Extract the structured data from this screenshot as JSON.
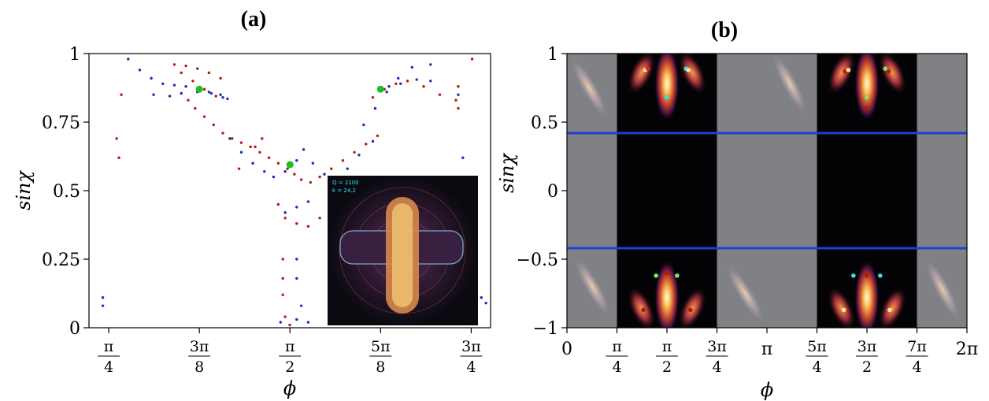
{
  "figure": {
    "label_a": "(a)",
    "label_b": "(b)"
  },
  "chart_data": [
    {
      "type": "scatter",
      "panel": "(a)",
      "xlabel": "ϕ",
      "ylabel": "sinχ",
      "xlim": [
        0.7,
        2.44
      ],
      "ylim": [
        0,
        1
      ],
      "xticks": [
        {
          "value": 0.7854,
          "num": "π",
          "den": "4"
        },
        {
          "value": 1.1781,
          "num": "3π",
          "den": "8"
        },
        {
          "value": 1.5708,
          "num": "π",
          "den": "2"
        },
        {
          "value": 1.9635,
          "num": "5π",
          "den": "8"
        },
        {
          "value": 2.3562,
          "num": "3π",
          "den": "4"
        }
      ],
      "yticks": [
        {
          "value": 0,
          "label": "0"
        },
        {
          "value": 0.25,
          "label": "0.25"
        },
        {
          "value": 0.5,
          "label": "0.5"
        },
        {
          "value": 0.75,
          "label": "0.75"
        },
        {
          "value": 1,
          "label": "1"
        }
      ],
      "colors": {
        "red": "#b41b0e",
        "blue": "#1f2bb8",
        "marker": "#22bb22"
      },
      "series": [
        {
          "color": "red",
          "points": [
            [
              1.07,
              0.96
            ],
            [
              1.12,
              0.955
            ],
            [
              1.17,
              0.945
            ],
            [
              1.22,
              0.93
            ],
            [
              1.27,
              0.91
            ],
            [
              1.1,
              0.93
            ],
            [
              1.15,
              0.9
            ],
            [
              1.2,
              0.87
            ],
            [
              1.25,
              0.845
            ],
            [
              1.13,
              0.83
            ],
            [
              1.16,
              0.8
            ],
            [
              1.2,
              0.77
            ],
            [
              1.24,
              0.74
            ],
            [
              1.28,
              0.71
            ],
            [
              1.32,
              0.69
            ],
            [
              1.36,
              0.675
            ],
            [
              1.4,
              0.66
            ],
            [
              1.44,
              0.64
            ],
            [
              1.48,
              0.62
            ],
            [
              1.52,
              0.6
            ],
            [
              1.56,
              0.58
            ],
            [
              1.59,
              0.56
            ],
            [
              1.62,
              0.54
            ],
            [
              1.66,
              0.53
            ],
            [
              1.7,
              0.55
            ],
            [
              1.75,
              0.58
            ],
            [
              1.8,
              0.61
            ],
            [
              1.85,
              0.64
            ],
            [
              1.9,
              0.67
            ],
            [
              1.95,
              0.7
            ],
            [
              1.93,
              0.84
            ],
            [
              1.98,
              0.87
            ],
            [
              2.03,
              0.89
            ],
            [
              2.08,
              0.9
            ],
            [
              2.15,
              0.88
            ],
            [
              2.22,
              0.85
            ],
            [
              2.3,
              0.88
            ],
            [
              2.36,
              0.98
            ],
            [
              0.84,
              0.85
            ],
            [
              0.82,
              0.69
            ],
            [
              0.83,
              0.62
            ],
            [
              2.3,
              0.8
            ],
            [
              2.29,
              0.83
            ],
            [
              1.54,
              0.25
            ],
            [
              1.54,
              0.18
            ],
            [
              1.54,
              0.12
            ],
            [
              1.52,
              0.45
            ],
            [
              1.55,
              0.4
            ],
            [
              1.6,
              0.38
            ],
            [
              1.65,
              0.37
            ],
            [
              1.7,
              0.4
            ],
            [
              1.42,
              0.66
            ],
            [
              1.45,
              0.69
            ],
            [
              1.35,
              0.58
            ],
            [
              1.55,
              0.04
            ],
            [
              1.57,
              0.01
            ]
          ]
        },
        {
          "color": "blue",
          "points": [
            [
              0.87,
              0.98
            ],
            [
              0.92,
              0.94
            ],
            [
              0.97,
              0.91
            ],
            [
              1.02,
              0.89
            ],
            [
              1.07,
              0.885
            ],
            [
              1.12,
              0.88
            ],
            [
              1.17,
              0.87
            ],
            [
              1.22,
              0.86
            ],
            [
              1.27,
              0.85
            ],
            [
              1.3,
              0.835
            ],
            [
              1.05,
              0.845
            ],
            [
              1.1,
              0.855
            ],
            [
              1.17,
              0.86
            ],
            [
              1.23,
              0.855
            ],
            [
              1.28,
              0.84
            ],
            [
              1.31,
              0.69
            ],
            [
              1.36,
              0.64
            ],
            [
              1.41,
              0.6
            ],
            [
              1.46,
              0.57
            ],
            [
              1.5,
              0.55
            ],
            [
              1.55,
              0.57
            ],
            [
              1.6,
              0.61
            ],
            [
              1.63,
              0.65
            ],
            [
              1.67,
              0.6
            ],
            [
              1.72,
              0.56
            ],
            [
              1.77,
              0.53
            ],
            [
              1.82,
              0.58
            ],
            [
              1.87,
              0.63
            ],
            [
              1.93,
              0.68
            ],
            [
              1.89,
              0.74
            ],
            [
              1.94,
              0.8
            ],
            [
              1.99,
              0.86
            ],
            [
              2.04,
              0.91
            ],
            [
              2.1,
              0.95
            ],
            [
              2.18,
              0.96
            ],
            [
              2.0,
              0.88
            ],
            [
              2.05,
              0.89
            ],
            [
              2.12,
              0.905
            ],
            [
              2.18,
              0.9
            ],
            [
              1.55,
              0.42
            ],
            [
              1.6,
              0.44
            ],
            [
              1.65,
              0.46
            ],
            [
              1.6,
              0.25
            ],
            [
              1.6,
              0.18
            ],
            [
              1.62,
              0.08
            ],
            [
              1.6,
              0.03
            ],
            [
              1.65,
              0.02
            ],
            [
              1.53,
              0.02
            ],
            [
              0.76,
              0.11
            ],
            [
              0.76,
              0.08
            ],
            [
              2.4,
              0.11
            ],
            [
              2.42,
              0.09
            ],
            [
              2.3,
              0.85
            ],
            [
              2.32,
              0.62
            ],
            [
              0.98,
              0.85
            ]
          ]
        }
      ],
      "markers": [
        [
          1.178,
          0.87
        ],
        [
          1.571,
          0.595
        ],
        [
          1.963,
          0.87
        ]
      ],
      "inset": {
        "line1": "Q = 2100",
        "line2": "k = 24.2"
      }
    },
    {
      "type": "heatmap",
      "panel": "(b)",
      "xlabel": "ϕ",
      "ylabel": "sinχ",
      "xlim": [
        0,
        6.2832
      ],
      "ylim": [
        -1,
        1
      ],
      "xticks": [
        {
          "value": 0,
          "label": "0"
        },
        {
          "value": 0.7854,
          "num": "π",
          "den": "4"
        },
        {
          "value": 1.5708,
          "num": "π",
          "den": "2"
        },
        {
          "value": 2.3562,
          "num": "3π",
          "den": "4"
        },
        {
          "value": 3.1416,
          "label": "π"
        },
        {
          "value": 3.927,
          "num": "5π",
          "den": "4"
        },
        {
          "value": 4.7124,
          "num": "3π",
          "den": "2"
        },
        {
          "value": 5.4978,
          "num": "7π",
          "den": "4"
        },
        {
          "value": 6.2832,
          "label": "2π"
        }
      ],
      "yticks": [
        {
          "value": 1,
          "label": "1"
        },
        {
          "value": 0.5,
          "label": "0.5"
        },
        {
          "value": 0,
          "label": "0"
        },
        {
          "value": -0.5,
          "label": "−0.5"
        },
        {
          "value": -1,
          "label": "−1"
        }
      ],
      "critical_lines": [
        0.42,
        -0.42
      ],
      "colors": {
        "line": "#1f3fd8",
        "gray": "#7f8184",
        "dark": "#030305"
      },
      "dark_bands": [
        [
          0.7854,
          2.3562
        ],
        [
          3.927,
          5.4978
        ]
      ],
      "points": [
        {
          "x": 1.23,
          "y": 0.88,
          "c": "#f7e88a"
        },
        {
          "x": 1.27,
          "y": 0.89,
          "c": "#e02a1c"
        },
        {
          "x": 1.87,
          "y": 0.89,
          "c": "#33e0e8"
        },
        {
          "x": 1.91,
          "y": 0.88,
          "c": "#f7e88a"
        },
        {
          "x": 1.57,
          "y": 0.68,
          "c": "#33e0e8"
        },
        {
          "x": 4.37,
          "y": 0.87,
          "c": "#b41b0e"
        },
        {
          "x": 4.42,
          "y": 0.88,
          "c": "#f7e88a"
        },
        {
          "x": 5.0,
          "y": 0.89,
          "c": "#7be86a"
        },
        {
          "x": 5.05,
          "y": 0.87,
          "c": "#b41b0e"
        },
        {
          "x": 4.71,
          "y": 0.68,
          "c": "#7be86a"
        },
        {
          "x": 4.71,
          "y": 0.6,
          "c": "#b41b0e"
        },
        {
          "x": 1.4,
          "y": -0.62,
          "c": "#7be86a"
        },
        {
          "x": 1.57,
          "y": -0.6,
          "c": "#b41b0e"
        },
        {
          "x": 1.73,
          "y": -0.62,
          "c": "#7be86a"
        },
        {
          "x": 1.2,
          "y": -0.87,
          "c": "#b41b0e"
        },
        {
          "x": 1.94,
          "y": -0.87,
          "c": "#b41b0e"
        },
        {
          "x": 4.5,
          "y": -0.62,
          "c": "#33e0e8"
        },
        {
          "x": 4.71,
          "y": -0.62,
          "c": "#b41b0e"
        },
        {
          "x": 4.92,
          "y": -0.62,
          "c": "#33e0e8"
        },
        {
          "x": 4.35,
          "y": -0.87,
          "c": "#f7e88a"
        },
        {
          "x": 5.07,
          "y": -0.87,
          "c": "#f7e88a"
        }
      ]
    }
  ]
}
